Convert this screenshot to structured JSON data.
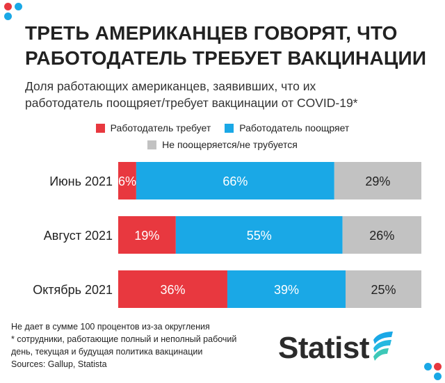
{
  "title_lines": [
    "ТРЕТЬ АМЕРИКАНЦЕВ ГОВОРЯТ, ЧТО",
    "РАБОТОДАТЕЛЬ ТРЕБУЕТ ВАКЦИНАЦИИ"
  ],
  "subtitle_lines": [
    "Доля работающих американцев, заявивших, что их",
    "работодатель поощряет/требует вакцинации от COVID-19*"
  ],
  "chart_data": {
    "type": "bar",
    "orientation": "horizontal",
    "stacked": true,
    "categories": [
      "Июнь 2021",
      "Август 2021",
      "Октябрь 2021"
    ],
    "series": [
      {
        "name": "Работодатель требует",
        "color": "#e8383f",
        "values": [
          6,
          19,
          36
        ]
      },
      {
        "name": "Работодатель поощряет",
        "color": "#1aa8e6",
        "values": [
          66,
          55,
          39
        ]
      },
      {
        "name": "Не поощеряется/не трубуется",
        "color": "#c2c2c2",
        "values": [
          29,
          26,
          25
        ]
      }
    ],
    "data_labels": [
      [
        "6%",
        "66%",
        "29%"
      ],
      [
        "19%",
        "55%",
        "26%"
      ],
      [
        "36%",
        "39%",
        "25%"
      ]
    ],
    "legend_position": "top",
    "grid": false
  },
  "footnotes": [
    "Не дает в сумме 100 процентов из-за округления",
    "* сотрудники, работающие полный и неполный рабочий",
    "день, текущая и будущая политика вакцинации",
    "Sources: Gallup, Statista"
  ],
  "logo": {
    "text": "Statist",
    "icon": "statista-logo-icon"
  },
  "colors": {
    "red": "#e8383f",
    "blue": "#1aa8e6",
    "gray": "#c2c2c2"
  }
}
